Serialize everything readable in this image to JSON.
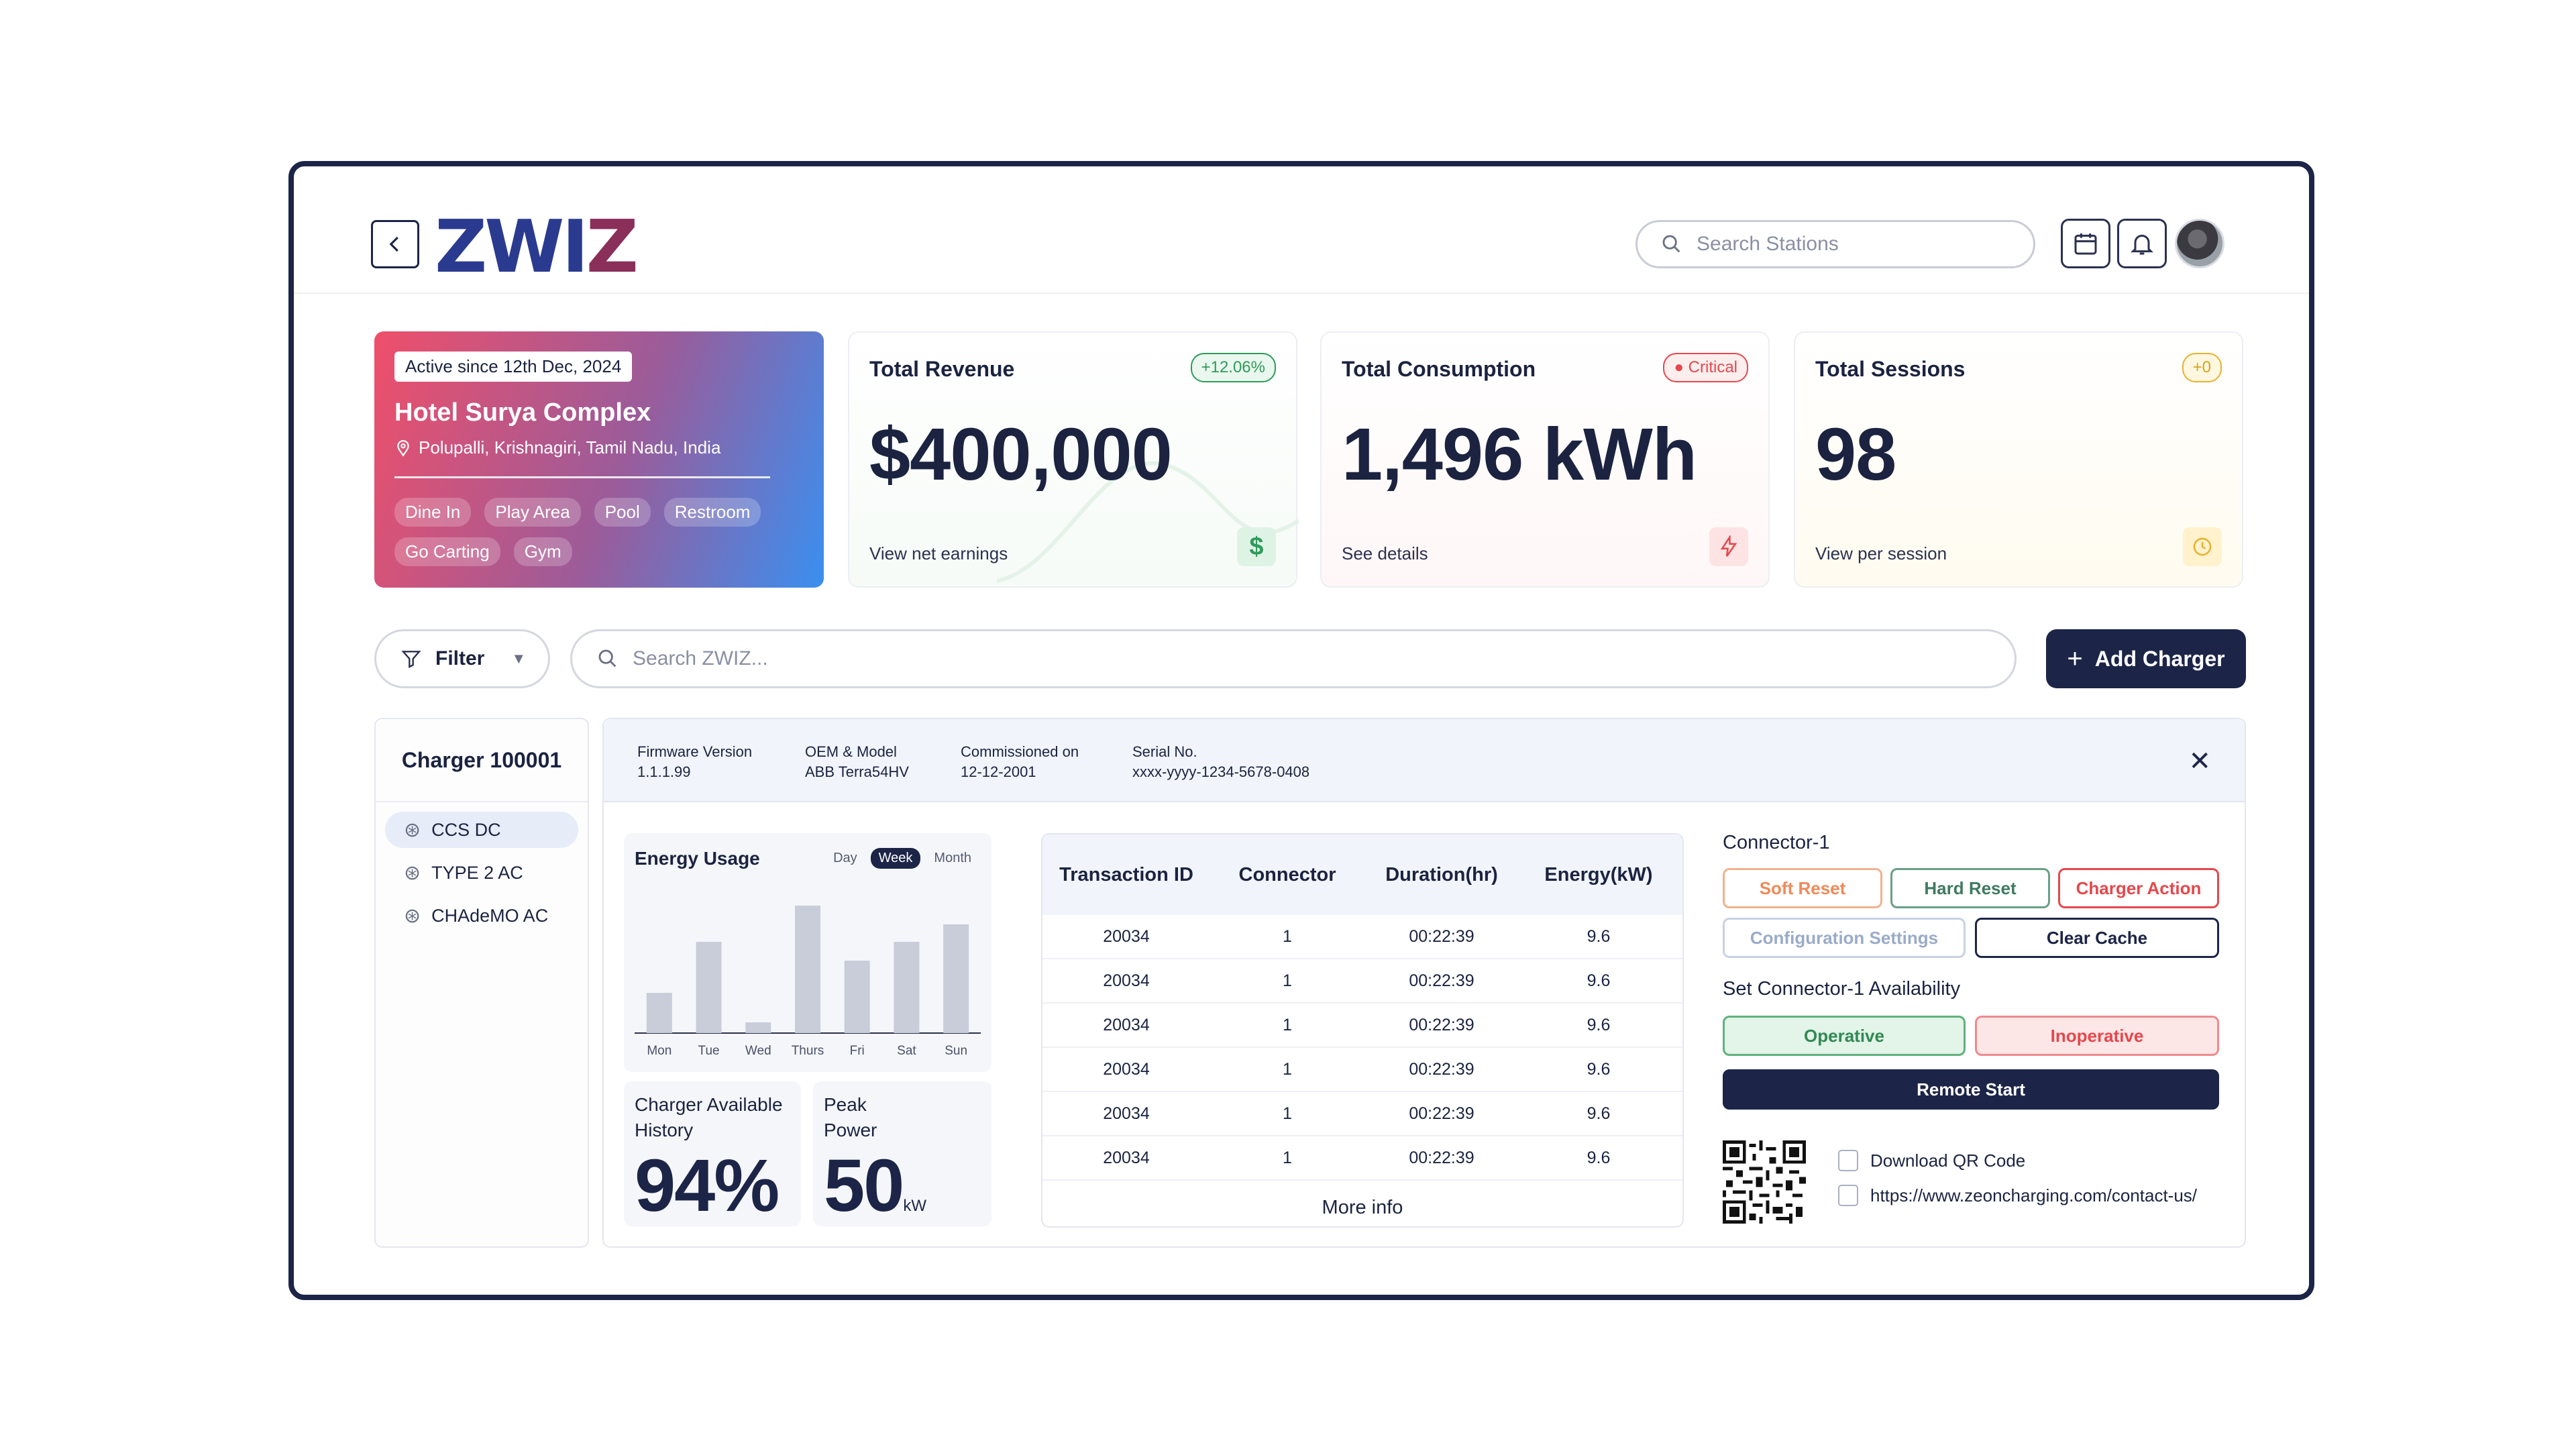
{
  "header": {
    "logo": {
      "part1": "ZWI",
      "part2": "Z"
    },
    "search_placeholder": "Search Stations",
    "icons": [
      "back-icon",
      "calendar-icon",
      "bell-icon",
      "avatar"
    ]
  },
  "station": {
    "active_since": "Active since 12th Dec, 2024",
    "name": "Hotel Surya Complex",
    "location": "Polupalli, Krishnagiri, Tamil Nadu, India",
    "amenities": [
      "Dine In",
      "Play Area",
      "Pool",
      "Restroom",
      "Go Carting",
      "Gym"
    ]
  },
  "stats": [
    {
      "title": "Total Revenue",
      "badge": "+12.06%",
      "value": "$400,000",
      "link": "View net earnings",
      "icon": "dollar-icon",
      "accent": "#2e9b5a"
    },
    {
      "title": "Total Consumption",
      "badge": "Critical",
      "value": "1,496 kWh",
      "link": "See details",
      "icon": "lightning-icon",
      "accent": "#e5484d"
    },
    {
      "title": "Total Sessions",
      "badge": "+0",
      "value": "98",
      "link": "View per session",
      "icon": "clock-icon",
      "accent": "#e8b22e"
    }
  ],
  "toolbar": {
    "filter_label": "Filter",
    "search_placeholder": "Search ZWIZ...",
    "add_label": "Add Charger"
  },
  "charger": {
    "name": "Charger 100001",
    "connectors": [
      "CCS DC",
      "TYPE 2 AC",
      "CHAdeMO AC"
    ],
    "info": [
      {
        "label": "Firmware Version",
        "value": "1.1.1.99"
      },
      {
        "label": "OEM & Model",
        "value": "ABB Terra54HV"
      },
      {
        "label": "Commissioned on",
        "value": "12-12-2001"
      },
      {
        "label": "Serial No.",
        "value": "xxxx-yyyy-1234-5678-0408"
      }
    ]
  },
  "energy": {
    "title": "Energy Usage",
    "ranges": [
      "Day",
      "Week",
      "Month"
    ],
    "selected": "Week"
  },
  "chart_data": {
    "type": "bar",
    "categories": [
      "Mon",
      "Tue",
      "Wed",
      "Thurs",
      "Fri",
      "Sat",
      "Sun"
    ],
    "values": [
      3,
      6.8,
      0.8,
      9.5,
      5.4,
      6.8,
      8.1
    ],
    "ylim": [
      0,
      10
    ]
  },
  "availability": {
    "label": "Charger Available History",
    "value": "94%"
  },
  "peak": {
    "label": "Peak Power",
    "value": "50",
    "unit": "kW"
  },
  "transactions": {
    "headers": [
      "Transaction ID",
      "Connector",
      "Duration(hr)",
      "Energy(kW)"
    ],
    "rows": [
      [
        "20034",
        "1",
        "00:22:39",
        "9.6"
      ],
      [
        "20034",
        "1",
        "00:22:39",
        "9.6"
      ],
      [
        "20034",
        "1",
        "00:22:39",
        "9.6"
      ],
      [
        "20034",
        "1",
        "00:22:39",
        "9.6"
      ],
      [
        "20034",
        "1",
        "00:22:39",
        "9.6"
      ],
      [
        "20034",
        "1",
        "00:22:39",
        "9.6"
      ]
    ],
    "more": "More info"
  },
  "connector_actions": {
    "title": "Connector-1",
    "soft_reset": "Soft Reset",
    "hard_reset": "Hard Reset",
    "charger_action": "Charger Action",
    "config": "Configuration Settings",
    "clear_cache": "Clear Cache",
    "availability_title": "Set Connector-1 Availability",
    "operative": "Operative",
    "inoperative": "Inoperative",
    "remote_start": "Remote Start",
    "download_qr": "Download QR Code",
    "url": "https://www.zeoncharging.com/contact-us/"
  }
}
